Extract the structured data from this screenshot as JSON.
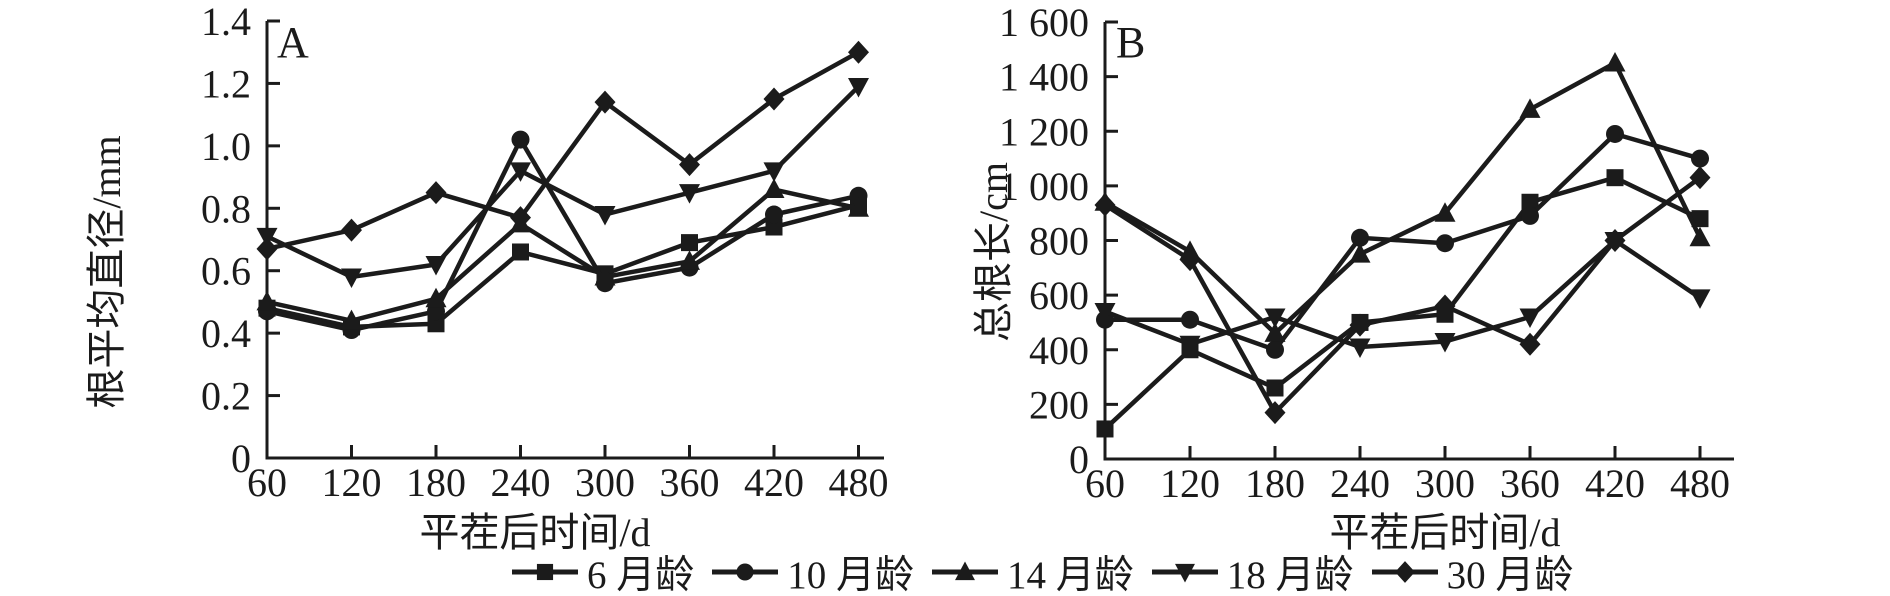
{
  "figure": {
    "ink_color": "#1b1b1b",
    "background": "#ffffff",
    "legend": [
      {
        "marker": "square",
        "label": "6 月龄"
      },
      {
        "marker": "circle",
        "label": "10 月龄"
      },
      {
        "marker": "triangle-up",
        "label": "14 月龄"
      },
      {
        "marker": "triangle-down",
        "label": "18 月龄"
      },
      {
        "marker": "diamond",
        "label": "30 月龄"
      }
    ]
  },
  "chart_data": [
    {
      "type": "line",
      "panel": "A",
      "xlabel": "平茬后时间/d",
      "ylabel": "根平均直径/mm",
      "x": [
        60,
        120,
        180,
        240,
        300,
        360,
        420,
        480
      ],
      "xtick_labels": [
        "60",
        "120",
        "180",
        "240",
        "300",
        "360",
        "420",
        "480"
      ],
      "ylim": [
        0,
        1.4
      ],
      "ytick_values": [
        0,
        0.2,
        0.4,
        0.6,
        0.8,
        1.0,
        1.2,
        1.4
      ],
      "ytick_labels": [
        "0",
        "0.2",
        "0.4",
        "0.6",
        "0.8",
        "1.0",
        "1.2",
        "1.4"
      ],
      "grid": false,
      "series": [
        {
          "name": "6 月龄",
          "marker": "square",
          "values": [
            0.48,
            0.42,
            0.43,
            0.66,
            0.59,
            0.69,
            0.74,
            0.81
          ]
        },
        {
          "name": "10 月龄",
          "marker": "circle",
          "values": [
            0.47,
            0.41,
            0.47,
            1.02,
            0.56,
            0.61,
            0.78,
            0.84
          ]
        },
        {
          "name": "14 月龄",
          "marker": "triangle-up",
          "values": [
            0.5,
            0.44,
            0.51,
            0.75,
            0.58,
            0.63,
            0.86,
            0.8
          ]
        },
        {
          "name": "18 月龄",
          "marker": "triangle-down",
          "values": [
            0.71,
            0.58,
            0.62,
            0.92,
            0.78,
            0.85,
            0.92,
            1.19
          ]
        },
        {
          "name": "30 月龄",
          "marker": "diamond",
          "values": [
            0.67,
            0.73,
            0.85,
            0.77,
            1.14,
            0.94,
            1.15,
            1.3
          ]
        }
      ]
    },
    {
      "type": "line",
      "panel": "B",
      "xlabel": "平茬后时间/d",
      "ylabel": "总根长/cm",
      "x": [
        60,
        120,
        180,
        240,
        300,
        360,
        420,
        480
      ],
      "xtick_labels": [
        "60",
        "120",
        "180",
        "240",
        "300",
        "360",
        "420",
        "480"
      ],
      "ylim": [
        0,
        1600
      ],
      "ytick_values": [
        0,
        200,
        400,
        600,
        800,
        1000,
        1200,
        1400,
        1600
      ],
      "ytick_labels": [
        "0",
        "200",
        "400",
        "600",
        "800",
        "1 000",
        "1 200",
        "1 400",
        "1 600"
      ],
      "grid": false,
      "series": [
        {
          "name": "6 月龄",
          "marker": "square",
          "values": [
            110,
            400,
            260,
            500,
            530,
            940,
            1030,
            880
          ]
        },
        {
          "name": "10 月龄",
          "marker": "circle",
          "values": [
            510,
            510,
            400,
            810,
            790,
            890,
            1190,
            1100
          ]
        },
        {
          "name": "14 月龄",
          "marker": "triangle-up",
          "values": [
            940,
            760,
            460,
            750,
            900,
            1280,
            1450,
            810
          ]
        },
        {
          "name": "18 月龄",
          "marker": "triangle-down",
          "values": [
            540,
            420,
            520,
            410,
            430,
            520,
            800,
            590
          ]
        },
        {
          "name": "30 月龄",
          "marker": "diamond",
          "values": [
            930,
            730,
            170,
            490,
            560,
            420,
            800,
            1030
          ]
        }
      ]
    }
  ]
}
